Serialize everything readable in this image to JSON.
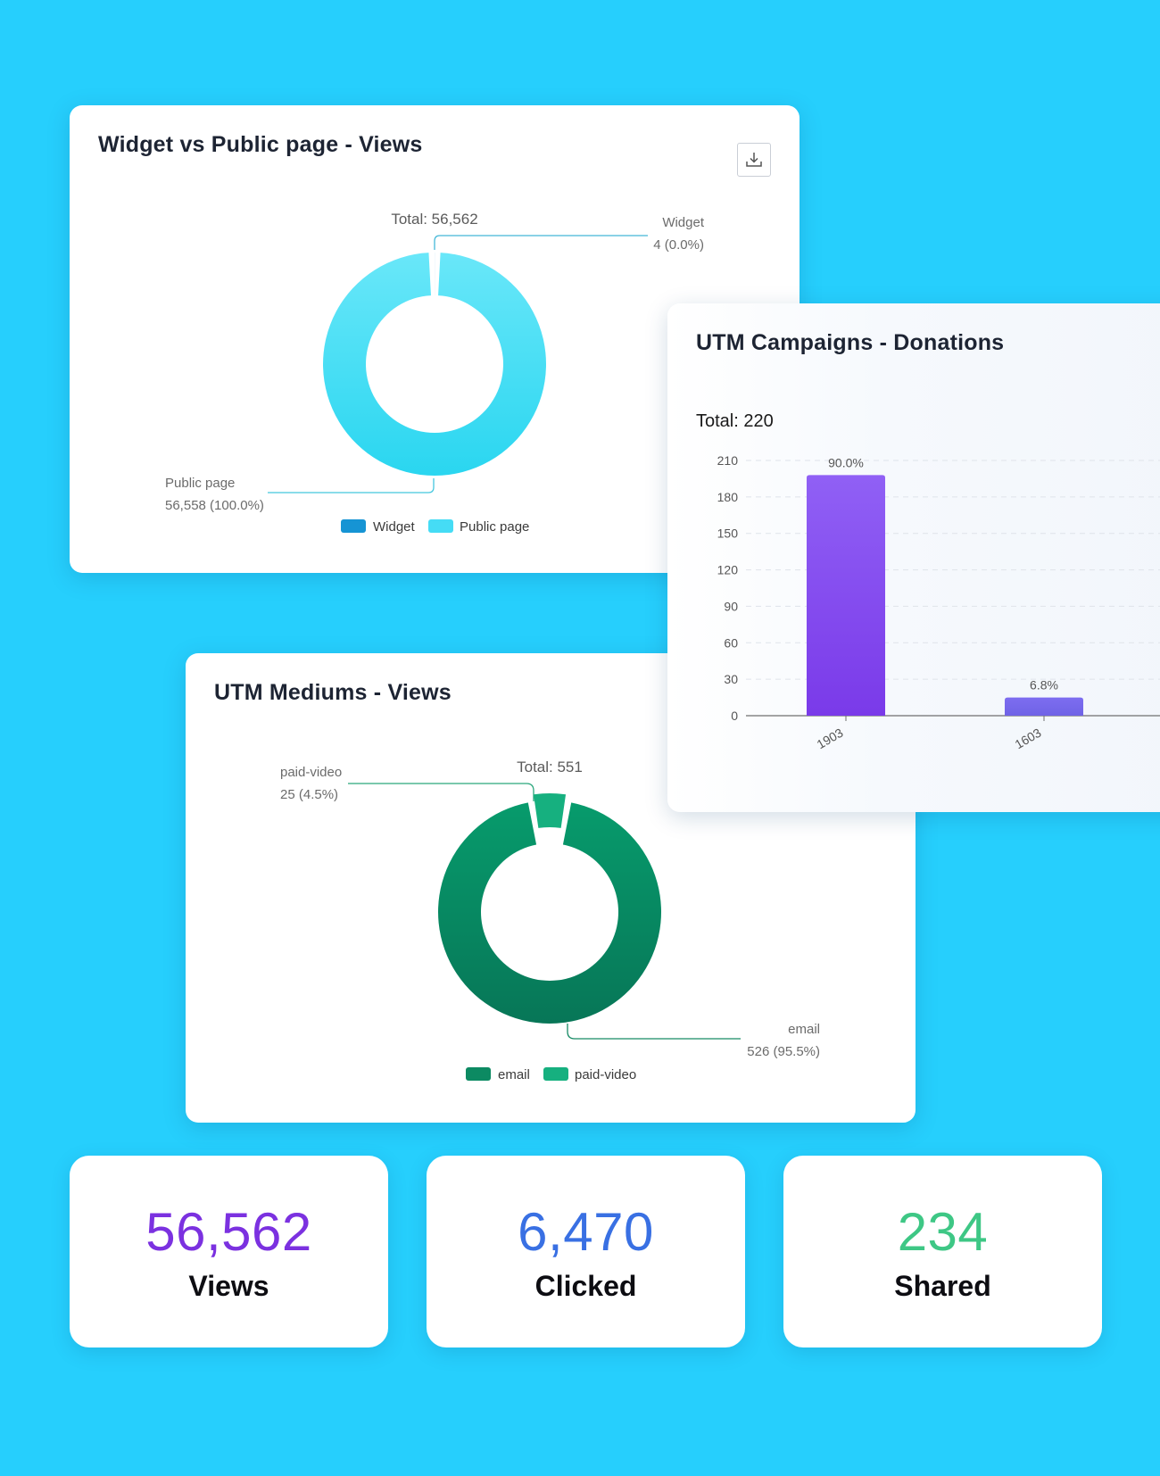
{
  "colors": {
    "background": "#26cffd",
    "widget": "#1694d4",
    "public_page": "#45dcf5",
    "bar": "#8b55f2",
    "bar_second": "#7768ea",
    "email": "#0c8a62",
    "paid_video": "#16b07f",
    "views": "#7b31e0",
    "clicked": "#3970e3",
    "shared": "#3ec785"
  },
  "icons": {
    "download": "download-icon"
  },
  "widget_card": {
    "title": "Widget vs Public page - Views",
    "chart_data": {
      "type": "pie",
      "title": "Widget vs Public page - Views",
      "total_label": "Total: 56,562",
      "slices": [
        {
          "name": "Widget",
          "value": 4,
          "label": "Widget",
          "sublabel": "4 (0.0%)"
        },
        {
          "name": "Public page",
          "value": 56558,
          "label": "Public page",
          "sublabel": "56,558 (100.0%)"
        }
      ],
      "legend": [
        "Widget",
        "Public page"
      ]
    }
  },
  "campaigns_card": {
    "title": "UTM Campaigns - Donations",
    "chart_data": {
      "type": "bar",
      "title": "UTM Campaigns - Donations",
      "total_label": "Total: 220",
      "categories": [
        "1903",
        "1603"
      ],
      "values": [
        198,
        15
      ],
      "data_labels": [
        "90.0%",
        "6.8%"
      ],
      "ylim": [
        0,
        210
      ],
      "yticks": [
        "0",
        "30",
        "60",
        "90",
        "120",
        "150",
        "180",
        "210"
      ],
      "grid": true
    }
  },
  "mediums_card": {
    "title": "UTM Mediums - Views",
    "chart_data": {
      "type": "pie",
      "title": "UTM Mediums - Views",
      "total_label": "Total: 551",
      "slices": [
        {
          "name": "paid-video",
          "value": 25,
          "label": "paid-video",
          "sublabel": "25 (4.5%)"
        },
        {
          "name": "email",
          "value": 526,
          "label": "email",
          "sublabel": "526 (95.5%)"
        }
      ],
      "legend": [
        "email",
        "paid-video"
      ]
    }
  },
  "stats": [
    {
      "value": "56,562",
      "label": "Views"
    },
    {
      "value": "6,470",
      "label": "Clicked"
    },
    {
      "value": "234",
      "label": "Shared"
    }
  ]
}
